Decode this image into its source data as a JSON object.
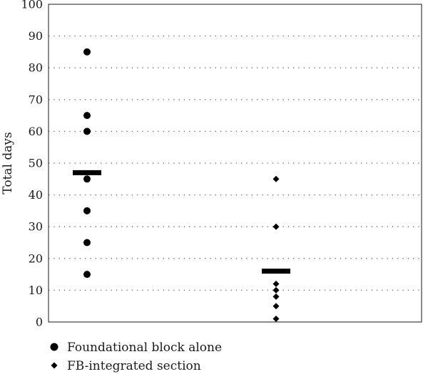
{
  "chart_data": {
    "type": "scatter",
    "title": "",
    "xlabel": "",
    "ylabel": "Total days",
    "ylim": [
      0,
      100
    ],
    "yticks": [
      0,
      10,
      20,
      30,
      40,
      50,
      60,
      70,
      80,
      90,
      100
    ],
    "grid": "horizontal dotted",
    "legend_position": "bottom-left",
    "series": [
      {
        "name": "Foundational block alone",
        "marker": "circle",
        "color": "#000000",
        "values": [
          85,
          65,
          60,
          45,
          35,
          25,
          15
        ],
        "mean": 47
      },
      {
        "name": "FB-integrated section",
        "marker": "diamond",
        "color": "#000000",
        "values": [
          45,
          30,
          12,
          10,
          8,
          5,
          1
        ],
        "mean": 16
      }
    ]
  }
}
